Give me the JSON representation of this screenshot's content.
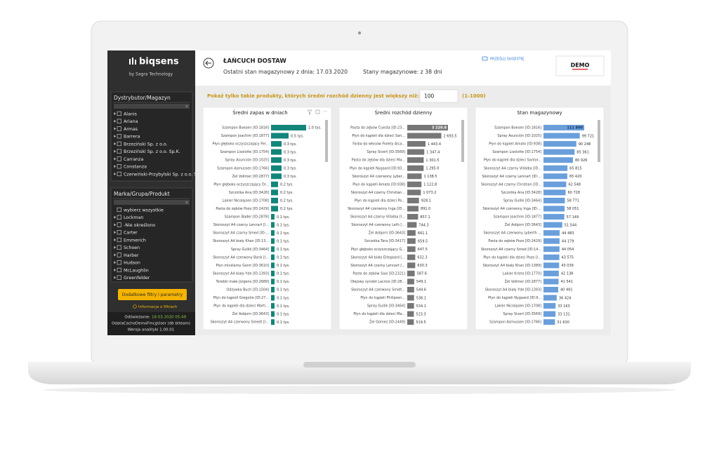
{
  "sidebar": {
    "logo": "biqsens",
    "logo_sub": "by Sagra Technology",
    "filters": [
      {
        "title": "Dystrybutor/Magazyn",
        "items": [
          "Alanis",
          "Ariana",
          "Armas",
          "Barrera",
          "Brzeziński Sp. z o.o.",
          "Brzeziński Sp. z o.o. Sp.K.",
          "Carranza",
          "Constanza",
          "Czerwiński-Przybylski Sp. z o.o. S"
        ]
      },
      {
        "title": "Marka/Grupa/Produkt",
        "items": [
          "wybierz wszystkie",
          "Lockman",
          "-Nie określono",
          "Carter",
          "Emmerich",
          "Schoen",
          "Harber",
          "Hudson",
          "McLaughlin",
          "Greenfelder"
        ]
      }
    ],
    "button": "Dodatkowe filtry i parametry",
    "info": "Informacja o filtrach",
    "refresh_label": "Odświeżanie:",
    "refresh_date": "18.03.2020 05:49",
    "user": "OdataCacheDemoFmcgUser (db biteam)",
    "version": "Wersja analityki 1.00.01"
  },
  "header": {
    "title": "ŁAŃCUCH DOSTAW",
    "stock_date": "Ostatni stan magazynowy z dnia: 17.03.2020",
    "stock_days": "Stany magazynowe: z 38 dni",
    "suggest": "PRZEŚLIJ SUGESTIĘ",
    "badge": "DEMO"
  },
  "filter": {
    "label": "Pokaż tylko takie produkty, których średni rozchód dzienny jest większy niż:",
    "input": "100",
    "range": "(1-1000)"
  },
  "charts": [
    {
      "type": "bar",
      "title": "Średni zapas w dniach",
      "color": "#12867a",
      "categories": [
        "Szampon Boesen [ID:1816]",
        "Szampon Joachim [ID:1877]",
        "Płyn głęboko oczyszczający Fer...",
        "Szampon Lisolotte [ID:1754]",
        "Spray Asunción [ID:1025]",
        "Szampon Asmussen [ID:1766]",
        "Żel Vollmer [ID:2877]",
        "Płyn głęboko oczyszczający Dr...",
        "Szczotka Ana [ID:3428]",
        "Lakier Nicolajsen [ID:1708]",
        "Pasta do zębów Pozo [ID:2429]",
        "Szampon Bader [ID:2878]",
        "Skoroszyt A4 czarny Lennart [I...",
        "Skoroszyt A4 czarny Smed [ID:...",
        "Skoroszyt A4 biały Khan [ID:13...",
        "Spray Gullik [ID:3464]",
        "Skoroszyt A4 czerwony Bank [I...",
        "Płyn micelarny Gonri [ID:3610]",
        "Skoroszyt A4 biały Yde [ID:1393]",
        "Torebki małe Jürgens [ID:2689]",
        "Odżywka Buch [ID:1504]",
        "Płyn do kąpieli Gregoire [ID:27...",
        "Płyn do kąpieli dla dzieci Marti...",
        "Żel Asbjorn [ID:3643]",
        "Skoroszyt A4 czerwony Smedt [I..."
      ],
      "values": [
        1000,
        500,
        300,
        300,
        300,
        300,
        300,
        200,
        200,
        200,
        200,
        100,
        100,
        100,
        100,
        100,
        100,
        100,
        100,
        100,
        100,
        100,
        100,
        100,
        100
      ],
      "value_labels": [
        "1.0 tys.",
        "0.5 tys.",
        "0.3 tys.",
        "0.3 tys.",
        "0.3 tys.",
        "0.3 tys.",
        "0.3 tys.",
        "0.2 tys.",
        "0.2 tys.",
        "0.2 tys.",
        "0.2 tys.",
        "0.1 tys.",
        "0.1 tys.",
        "0.1 tys.",
        "0.1 tys.",
        "0.1 tys.",
        "0.1 tys.",
        "0.1 tys.",
        "0.1 tys.",
        "0.1 tys.",
        "0.1 tys.",
        "0.1 tys.",
        "0.1 tys.",
        "0.1 tys.",
        "0.1 tys."
      ]
    },
    {
      "type": "bar",
      "title": "Średni rozchód dzienny",
      "color": "#777777",
      "categories": [
        "Pasta do zębów Cuesta [ID:23...",
        "Płyn do kąpieli dla dzieci San...",
        "Farba do włosów Fiolety Alca...",
        "Spray Sivert [ID:3569]",
        "Pasta do zębów dla dzieci Ma...",
        "Płyn do kąpieli Nygaard [ID:93...",
        "Skoroszyt A4 czerwony Lyber...",
        "Płyn do kąpieli Amato [ID:938]",
        "Skoroszyt A4 czarny Christian...",
        "Płyn do kąpieli dla dzieci Po...",
        "Skoroszyt A4 czerwony Inga [ID...",
        "Skoroszyt A4 czarny Villalba [I...",
        "Skoroszyt A4 czerwony Leth [...",
        "Żel Asbjorn [ID:3643]",
        "Szczotka Tara [ID:3417]",
        "Płyn głęboko oczyszczający G...",
        "Skoroszyt A4 biały Ellegaard [...",
        "Skoroszyt A4 czarny Lennart [...",
        "Pasta do zębów Saxi [ID:2321]",
        "Olejowy syndet Lacroix [ID:28...",
        "Skoroszyt A4 czerwony Smidt...",
        "Płyn do kąpieli Philipsen...",
        "Spray Gullik [ID:3464]",
        "Płyn do kąpieli dla dzieci Ma...",
        "Żel Gómez [ID:2449]"
      ],
      "values": [
        3220.8,
        2693.5,
        1443.4,
        1347.4,
        1301.5,
        1295.0,
        1138.5,
        1122.8,
        1073.2,
        928.1,
        891.0,
        857.1,
        744.3,
        661.1,
        659.5,
        647.5,
        632.3,
        630.3,
        587.6,
        549.1,
        544.6,
        538.1,
        534.1,
        523.3,
        519.5
      ],
      "value_labels": [
        "3 220.8",
        "2 693.5",
        "1 443.4",
        "1 347.4",
        "1 301.5",
        "1 295.0",
        "1 138.5",
        "1 122.8",
        "1 073.2",
        "928.1",
        "891.0",
        "857.1",
        "744.3",
        "661.1",
        "659.5",
        "647.5",
        "632.3",
        "630.3",
        "587.6",
        "549.1",
        "544.6",
        "538.1",
        "534.1",
        "523.3",
        "519.5"
      ]
    },
    {
      "type": "bar",
      "title": "Stan magazynowy",
      "color": "#6a9fdc",
      "categories": [
        "Szampon Boesen [ID:1816]",
        "Spray Asunción [ID:1025]",
        "Płyn do kąpieli Amato [ID:938]",
        "Szampon Lisolotte [ID:1754]",
        "Płyn do kąpieli dla dzieci Santor...",
        "Skoroszyt A4 czarny Villalba [ID...",
        "Skoroszyt A4 czarny Lennart [ID:...",
        "Skoroszyt A4 czarny Christian [ID...",
        "Szczotka Ana [ID:3428]",
        "Spray Gullik [ID:3464]",
        "Skoroszyt A4 czerwony Inga [ID:...",
        "Szampon Joachim [ID:1877]",
        "Żel Asbjorn [ID:3643]",
        "Skoroszyt A4 czerwony Lyberth ...",
        "Pasta do zębów Pozo [ID:2429]",
        "Skoroszyt A4 czarny Smed [ID:14...",
        "Płyn do kąpieli dla dzieci Pozo [I...",
        "Skoroszyt A4 biały Khan [ID:1389]",
        "Lakier Krista [ID:1770]",
        "Żel Vollmer [ID:2877]",
        "Skoroszyt A4 biały Yde [ID:1393]",
        "Płyn do kąpieli Nygaard [ID:9...",
        "Lakier Nicolajsen [ID:1708]",
        "Spray Sivert [ID:3569]",
        "Szampon Asmussen [ID:1766]"
      ],
      "values": [
        111800,
        99721,
        90248,
        85361,
        80926,
        65815,
        65420,
        62548,
        60728,
        58771,
        58051,
        57149,
        51544,
        44483,
        44179,
        44054,
        43575,
        43039,
        42138,
        41541,
        40491,
        36424,
        33163,
        33131,
        31630
      ],
      "value_labels": [
        "111 800",
        "99 721",
        "90 248",
        "85 361",
        "80 926",
        "65 815",
        "65 420",
        "62 548",
        "60 728",
        "58 771",
        "58 051",
        "57 149",
        "51 544",
        "44 483",
        "44 179",
        "44 054",
        "43 575",
        "43 039",
        "42 138",
        "41 541",
        "40 491",
        "36 424",
        "33 163",
        "33 131",
        "31 630"
      ]
    }
  ]
}
